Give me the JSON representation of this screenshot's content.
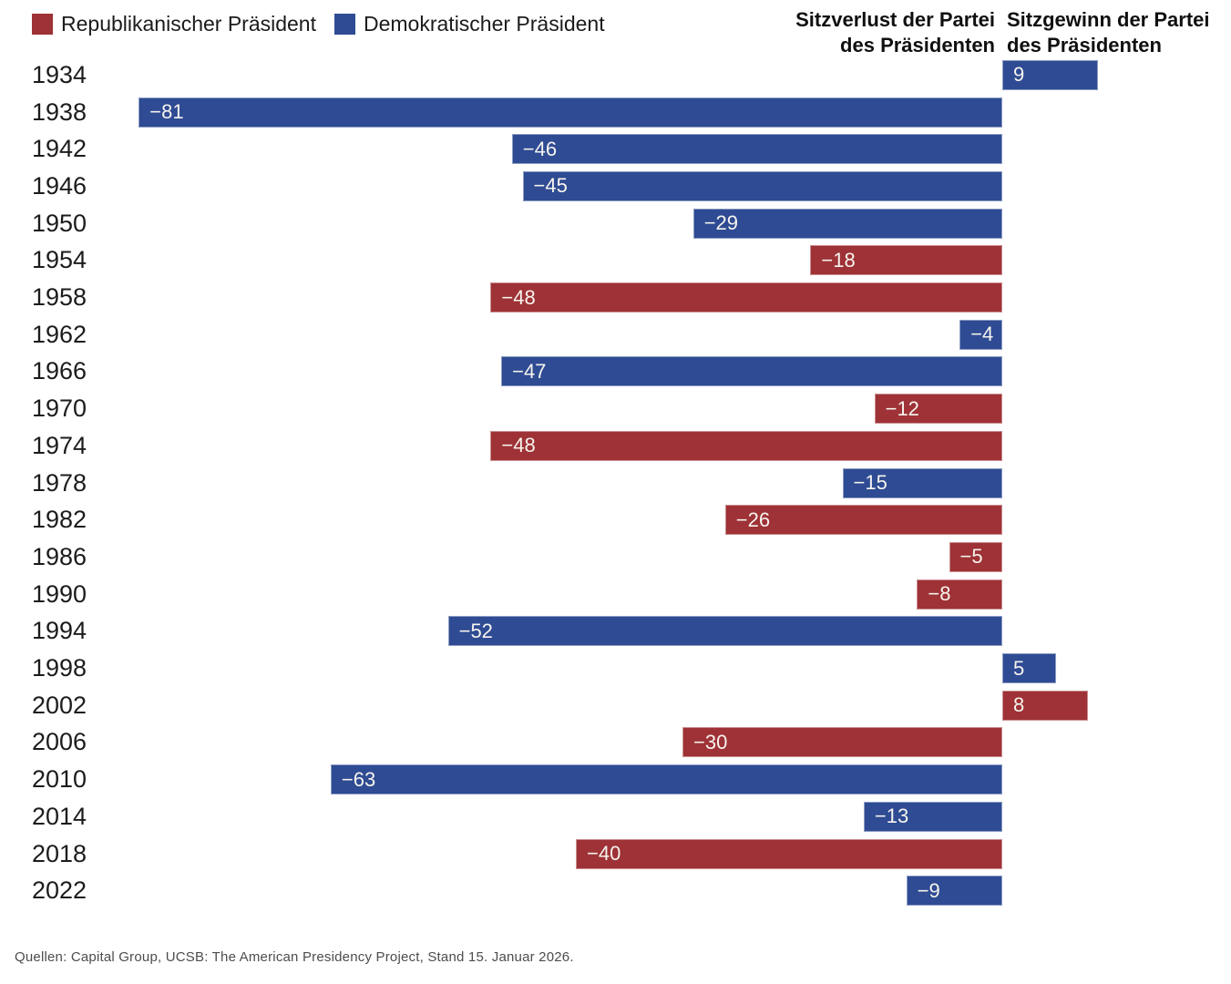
{
  "legend": {
    "items": [
      {
        "label": "Republikanischer Präsident",
        "party": "republican",
        "color": "#9e3236"
      },
      {
        "label": "Demokratischer Präsident",
        "party": "democrat",
        "color": "#2e4b93"
      }
    ]
  },
  "headers": {
    "loss": "Sitzverlust der Partei des Präsidenten",
    "gain": "Sitzgewinn der Partei des Präsidenten"
  },
  "chart_data": {
    "type": "bar",
    "orientation": "horizontal",
    "title": "",
    "xlabel": "",
    "ylabel": "",
    "xlim": [
      -85,
      10
    ],
    "grid": false,
    "legend_position": "top-left",
    "value_labels": "inside-start",
    "baseline": 0,
    "categories": [
      "1934",
      "1938",
      "1942",
      "1946",
      "1950",
      "1954",
      "1958",
      "1962",
      "1966",
      "1970",
      "1974",
      "1978",
      "1982",
      "1986",
      "1990",
      "1994",
      "1998",
      "2002",
      "2006",
      "2010",
      "2014",
      "2018",
      "2022"
    ],
    "rows": [
      {
        "year": "1934",
        "value": 9,
        "party": "democrat"
      },
      {
        "year": "1938",
        "value": -81,
        "party": "democrat"
      },
      {
        "year": "1942",
        "value": -46,
        "party": "democrat"
      },
      {
        "year": "1946",
        "value": -45,
        "party": "democrat"
      },
      {
        "year": "1950",
        "value": -29,
        "party": "democrat"
      },
      {
        "year": "1954",
        "value": -18,
        "party": "republican"
      },
      {
        "year": "1958",
        "value": -48,
        "party": "republican"
      },
      {
        "year": "1962",
        "value": -4,
        "party": "democrat"
      },
      {
        "year": "1966",
        "value": -47,
        "party": "democrat"
      },
      {
        "year": "1970",
        "value": -12,
        "party": "republican"
      },
      {
        "year": "1974",
        "value": -48,
        "party": "republican"
      },
      {
        "year": "1978",
        "value": -15,
        "party": "democrat"
      },
      {
        "year": "1982",
        "value": -26,
        "party": "republican"
      },
      {
        "year": "1986",
        "value": -5,
        "party": "republican"
      },
      {
        "year": "1990",
        "value": -8,
        "party": "republican"
      },
      {
        "year": "1994",
        "value": -52,
        "party": "democrat"
      },
      {
        "year": "1998",
        "value": 5,
        "party": "democrat"
      },
      {
        "year": "2002",
        "value": 8,
        "party": "republican"
      },
      {
        "year": "2006",
        "value": -30,
        "party": "republican"
      },
      {
        "year": "2010",
        "value": -63,
        "party": "democrat"
      },
      {
        "year": "2014",
        "value": -13,
        "party": "democrat"
      },
      {
        "year": "2018",
        "value": -40,
        "party": "republican"
      },
      {
        "year": "2022",
        "value": -9,
        "party": "democrat"
      }
    ]
  },
  "source": "Quellen: Capital Group, UCSB: The American Presidency Project, Stand 15. Januar 2026."
}
